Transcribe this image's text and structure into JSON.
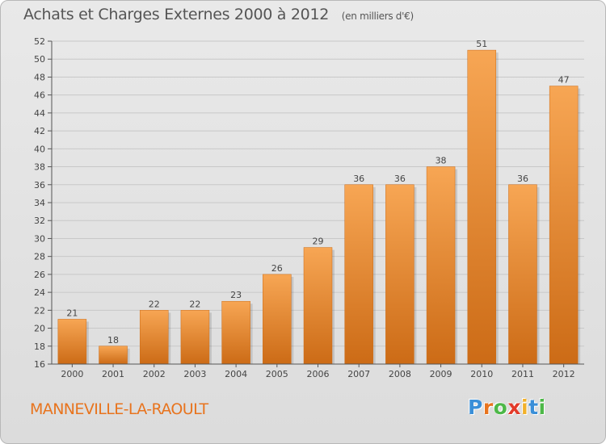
{
  "header": {
    "title": "Achats et Charges Externes 2000 à 2012",
    "unit": "(en milliers d'€)"
  },
  "footer": {
    "town": "MANNEVILLE-LA-RAOULT",
    "logo_letters": [
      "P",
      "r",
      "o",
      "x",
      "i",
      "t",
      "i"
    ],
    "logo_colors": [
      "#3a8fd8",
      "#e8741e",
      "#4db848",
      "#e33b2a",
      "#f2b12a",
      "#3a8fd8",
      "#4db848"
    ]
  },
  "colors": {
    "bar": "#f0923a",
    "bar_light": "#f7a654",
    "bar_dark": "#cc6b16",
    "grid": "#c8c8c8",
    "axis": "#555555",
    "text": "#444444"
  },
  "chart_data": {
    "type": "bar",
    "categories": [
      "2000",
      "2001",
      "2002",
      "2003",
      "2004",
      "2005",
      "2006",
      "2007",
      "2008",
      "2009",
      "2010",
      "2011",
      "2012"
    ],
    "values": [
      21,
      18,
      22,
      22,
      23,
      26,
      29,
      36,
      36,
      38,
      51,
      36,
      47
    ],
    "data_labels": [
      "21",
      "18",
      "22",
      "22",
      "23",
      "26",
      "29",
      "36",
      "36",
      "38",
      "51",
      "36",
      "47"
    ],
    "ylim": [
      16,
      52
    ],
    "yticks": [
      "16",
      "18",
      "20",
      "22",
      "24",
      "26",
      "28",
      "30",
      "32",
      "34",
      "36",
      "38",
      "40",
      "42",
      "44",
      "46",
      "48",
      "50",
      "52"
    ],
    "grid": true
  }
}
